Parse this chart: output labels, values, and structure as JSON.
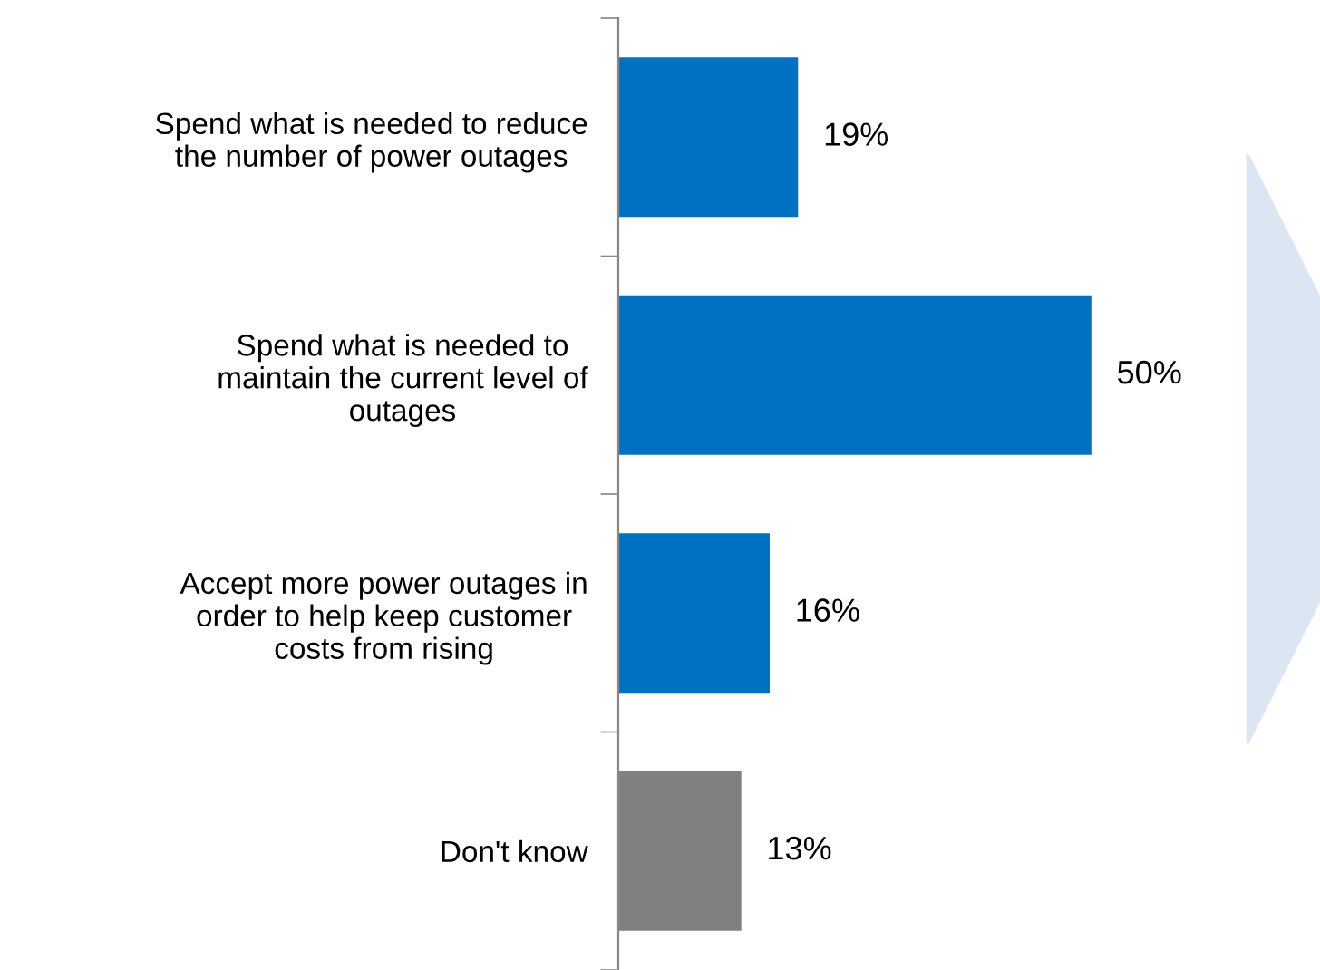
{
  "chart_data": {
    "type": "bar",
    "orientation": "horizontal",
    "categories": [
      "Spend what is needed to reduce\nthe number of power outages",
      "Spend what is needed to\nmaintain the current level of\noutages",
      "Accept more power outages in\norder to help keep customer\ncosts from rising",
      "Don't know"
    ],
    "values": [
      19,
      50,
      16,
      13
    ],
    "colors": [
      "#0070c0",
      "#0070c0",
      "#0070c0",
      "#808080"
    ],
    "value_labels": [
      "19%",
      "50%",
      "16%",
      "13%"
    ],
    "tick_labels": "y",
    "grid": false,
    "legend": false
  }
}
